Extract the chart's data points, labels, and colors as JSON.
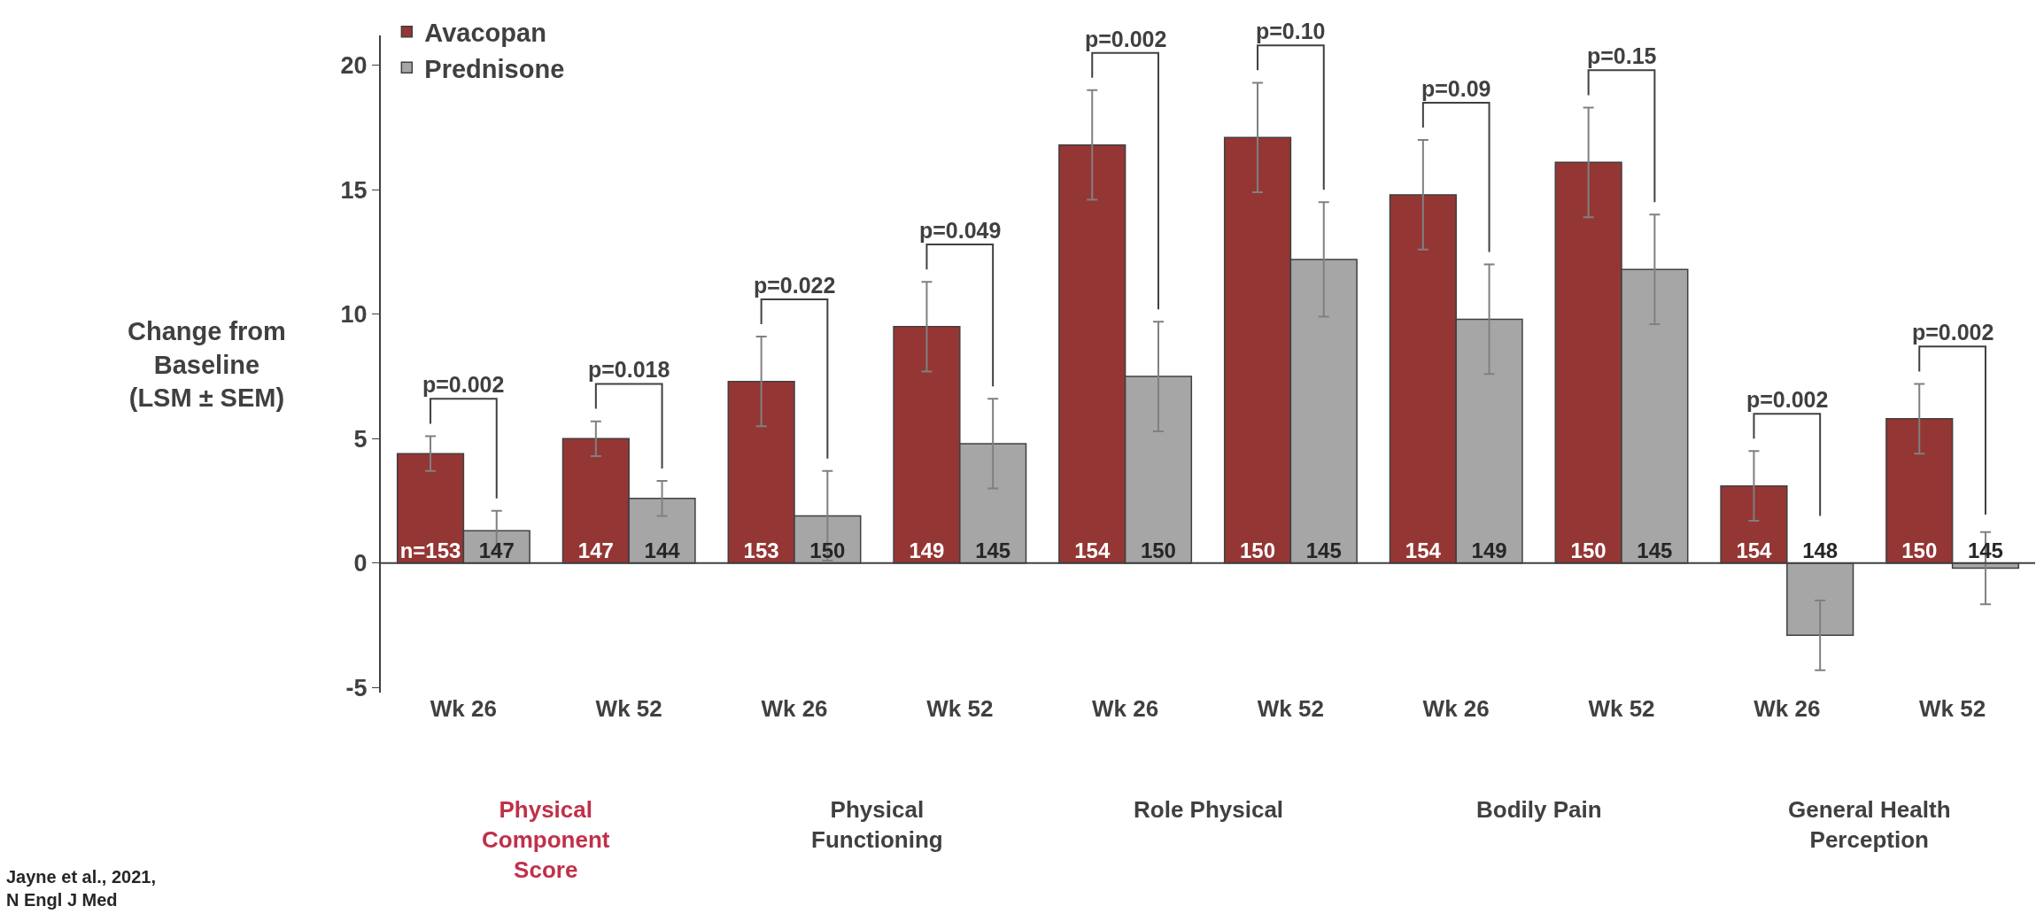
{
  "chart_data": {
    "type": "bar",
    "categories": [
      "Wk 26",
      "Wk 52",
      "Wk 26",
      "Wk 52",
      "Wk 26",
      "Wk 52",
      "Wk 26",
      "Wk 52",
      "Wk 26",
      "Wk 52"
    ],
    "series": [
      {
        "name": "Avacopan",
        "color": "#943634",
        "values": [
          4.4,
          5.0,
          7.3,
          9.5,
          16.8,
          17.1,
          14.8,
          16.1,
          3.1,
          5.8
        ],
        "errors": [
          0.7,
          0.7,
          1.8,
          1.8,
          2.2,
          2.2,
          2.2,
          2.2,
          1.4,
          1.4
        ]
      },
      {
        "name": "Prednisone",
        "color": "#a6a6a6",
        "values": [
          1.3,
          2.6,
          1.9,
          4.8,
          7.5,
          12.2,
          9.8,
          11.8,
          -2.9,
          -0.2
        ],
        "errors": [
          0.8,
          0.7,
          1.8,
          1.8,
          2.2,
          2.3,
          2.2,
          2.2,
          1.4,
          1.45
        ]
      }
    ],
    "ylabel": "Change from\nBaseline\n(LSM ± SEM)",
    "ylim": [
      -5.2,
      21.2
    ],
    "yticks": [
      -5,
      0,
      5,
      10,
      15,
      20
    ],
    "annotations": [
      "p=0.002",
      "p=0.018",
      "p=0.022",
      "p=0.049",
      "p=0.002",
      "p=0.10",
      "p=0.09",
      "p=0.15",
      "p=0.002",
      "p=0.002",
      "Physical\nComponent\nScore",
      "Physical\nFunctioning",
      "Role Physical",
      "Bodily Pain",
      "General Health\nPerception",
      "Jayne et al., 2021,\nN Engl J Med",
      "n=153",
      "147",
      "147",
      "144",
      "153",
      "150",
      "149",
      "145",
      "154",
      "150",
      "150",
      "145",
      "154",
      "149",
      "150",
      "145",
      "154",
      "148",
      "150",
      "145"
    ],
    "legend": "top left"
  }
}
